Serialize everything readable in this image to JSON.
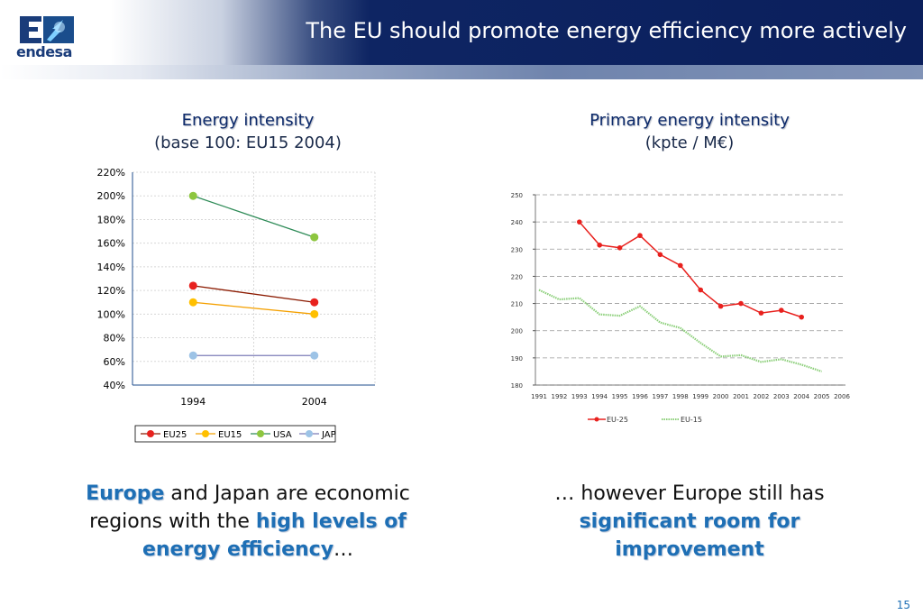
{
  "slide": {
    "title": "The EU should promote energy efficiency more actively",
    "logo_text": "endesa",
    "page_number": "15"
  },
  "left_chart": {
    "title": "Energy intensity",
    "subtitle": "(base 100: EU15 2004)"
  },
  "right_chart": {
    "title": "Primary energy intensity",
    "subtitle": "(kpte / M€)"
  },
  "captions": {
    "left_part1": "Europe",
    "left_part2": " and Japan are economic regions with the ",
    "left_part3": "high levels of energy efficiency",
    "left_part4": "…",
    "right_part1": "… however Europe still has ",
    "right_part2": "significant room for improvement"
  },
  "chart_data": [
    {
      "type": "line",
      "title": "Energy intensity",
      "subtitle": "(base 100: EU15 2004)",
      "categories": [
        "1994",
        "2004"
      ],
      "y_ticks": [
        "40%",
        "60%",
        "80%",
        "100%",
        "120%",
        "140%",
        "160%",
        "180%",
        "200%",
        "220%"
      ],
      "ylim": [
        40,
        220
      ],
      "grid": true,
      "legend_position": "bottom",
      "series": [
        {
          "name": "EU25",
          "values": [
            124,
            110
          ],
          "color": "#e8211e",
          "line_color": "#8b1a00"
        },
        {
          "name": "EU15",
          "values": [
            110,
            100
          ],
          "color": "#ffc000",
          "line_color": "#f4a000"
        },
        {
          "name": "USA",
          "values": [
            200,
            165
          ],
          "color": "#8dc63f",
          "line_color": "#2e8b57"
        },
        {
          "name": "JAP",
          "values": [
            65,
            65
          ],
          "color": "#9dc3e6",
          "line_color": "#7c7cb8"
        }
      ]
    },
    {
      "type": "line",
      "title": "Primary energy intensity",
      "subtitle": "(kpte / M€)",
      "x": [
        "1991",
        "1992",
        "1993",
        "1994",
        "1995",
        "1996",
        "1997",
        "1998",
        "1999",
        "2000",
        "2001",
        "2002",
        "2003",
        "2004",
        "2005",
        "2006"
      ],
      "y_ticks": [
        "180",
        "190",
        "200",
        "210",
        "220",
        "230",
        "240",
        "250"
      ],
      "ylim": [
        180,
        250
      ],
      "grid": true,
      "legend_position": "bottom",
      "series": [
        {
          "name": "EU-25",
          "color": "#e8211e",
          "values": [
            null,
            null,
            240,
            231.5,
            230.5,
            235,
            228,
            224,
            215,
            209,
            210,
            206.5,
            207.5,
            205,
            null,
            null
          ]
        },
        {
          "name": "EU-15",
          "color": "#8ccf7a",
          "values": [
            215,
            211.5,
            212,
            206,
            205.5,
            209,
            203,
            201,
            195.5,
            190.5,
            191,
            188.5,
            189.5,
            187.5,
            185,
            null
          ]
        }
      ]
    }
  ]
}
